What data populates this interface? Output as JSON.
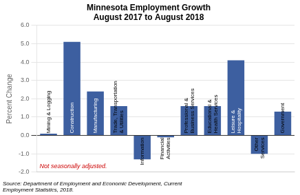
{
  "chart_data": {
    "type": "bar",
    "title": "Minnesota Employment Growth",
    "subtitle": "August 2017 to August 2018",
    "categories": [
      "Mining & Logging",
      "Construction",
      "Manufacturing",
      "Trade, Transportation\n& Utilities",
      "Information",
      "Financial\nActivities",
      "Professional &\nBusiness Services",
      "Educational &\nHealth Services",
      "Leisure &\nHospitality",
      "Other\nServices",
      "Government"
    ],
    "values": [
      0.1,
      5.1,
      2.4,
      1.6,
      -1.3,
      -0.1,
      1.6,
      1.6,
      4.1,
      -1.0,
      1.3
    ],
    "color": "#3d5fa0",
    "ylabel": "Percent Change",
    "ylim": [
      -2.0,
      6.0
    ],
    "yticks": [
      {
        "value": -2.0,
        "label": "-2.0"
      },
      {
        "value": -1.0,
        "label": "-1.0"
      },
      {
        "value": 0.0,
        "label": "0.0"
      },
      {
        "value": 1.0,
        "label": "1.0"
      },
      {
        "value": 2.0,
        "label": "2.0"
      },
      {
        "value": 3.0,
        "label": "3.0"
      },
      {
        "value": 4.0,
        "label": "4.0"
      },
      {
        "value": 5.0,
        "label": "5.0"
      },
      {
        "value": 6.0,
        "label": "6.0"
      }
    ],
    "grid": true,
    "tick_labels": "y",
    "annotations": [
      {
        "text": "Not seasonally adjusted.",
        "color": "#cc0000"
      }
    ],
    "source": "Source: Department of Employment and Economic Development, Current\nEmployment Statistics, 2018."
  }
}
